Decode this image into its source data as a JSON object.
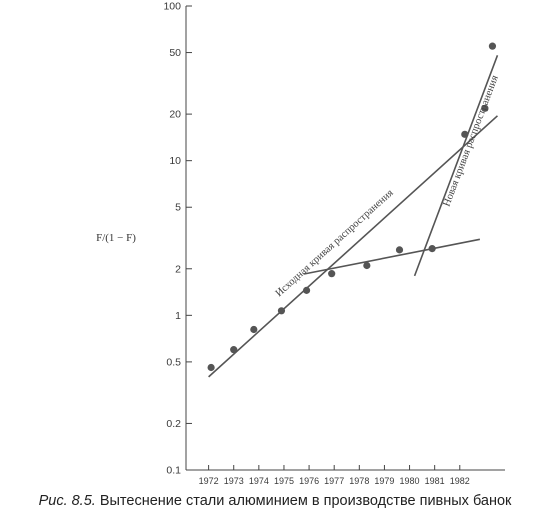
{
  "chart_data": {
    "type": "scatter",
    "ylabel": "F/(1 − F)",
    "yscale": "log",
    "ylim": [
      0.1,
      100
    ],
    "y_ticks": [
      {
        "value": 100,
        "label": "100"
      },
      {
        "value": 50,
        "label": "50"
      },
      {
        "value": 20,
        "label": "20"
      },
      {
        "value": 10,
        "label": "10"
      },
      {
        "value": 5,
        "label": "5"
      },
      {
        "value": 2,
        "label": "2"
      },
      {
        "value": 1,
        "label": "1"
      },
      {
        "value": 0.5,
        "label": "0.5"
      },
      {
        "value": 0.2,
        "label": "0.2"
      },
      {
        "value": 0.1,
        "label": "0.1"
      }
    ],
    "xlim": [
      1971.1,
      1983.8
    ],
    "x_ticks": [
      1972,
      1973,
      1974,
      1975,
      1976,
      1977,
      1978,
      1979,
      1980,
      1981,
      1982
    ],
    "x_tick_labels": [
      "1972",
      "1973",
      "1974",
      "1975",
      "1976",
      "1977",
      "1978",
      "1979",
      "1980",
      "1981",
      "1982"
    ],
    "points": [
      {
        "x": 1972.1,
        "y": 0.46
      },
      {
        "x": 1973.0,
        "y": 0.6
      },
      {
        "x": 1973.8,
        "y": 0.81
      },
      {
        "x": 1974.9,
        "y": 1.07
      },
      {
        "x": 1975.9,
        "y": 1.45
      },
      {
        "x": 1976.9,
        "y": 1.86
      },
      {
        "x": 1978.3,
        "y": 2.1
      },
      {
        "x": 1979.6,
        "y": 2.65
      },
      {
        "x": 1980.9,
        "y": 2.7
      },
      {
        "x": 1982.2,
        "y": 14.8
      },
      {
        "x": 1983.0,
        "y": 21.8
      },
      {
        "x": 1983.3,
        "y": 55
      }
    ],
    "lines": [
      {
        "label": "Исходная кривая распространения",
        "x": [
          1972.0,
          1983.5
        ],
        "y": [
          0.4,
          19.5
        ]
      },
      {
        "label": "",
        "x": [
          1975.8,
          1982.8
        ],
        "y": [
          1.85,
          3.1
        ]
      },
      {
        "label": "Новая кривая распространения",
        "x": [
          1980.2,
          1983.5
        ],
        "y": [
          1.8,
          48
        ]
      }
    ],
    "annotations": [
      "Исходная кривая распространения",
      "Новая кривая распространения"
    ],
    "colors": {
      "marks": "#555555",
      "axis": "#444444"
    }
  },
  "caption": {
    "figure_number": "Рис. 8.5.",
    "text": "Вытеснение стали алюминием в производстве пивных банок"
  }
}
